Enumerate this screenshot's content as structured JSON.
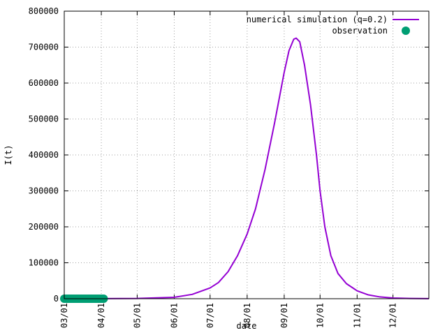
{
  "chart_data": {
    "type": "line",
    "xlabel": "date",
    "ylabel": "I(t)",
    "xlim": [
      "2020-03-01",
      "2020-12-31"
    ],
    "ylim": [
      0,
      800000
    ],
    "xticks": [
      {
        "date": "2020-03-01",
        "label": "03/01"
      },
      {
        "date": "2020-04-01",
        "label": "04/01"
      },
      {
        "date": "2020-05-01",
        "label": "05/01"
      },
      {
        "date": "2020-06-01",
        "label": "06/01"
      },
      {
        "date": "2020-07-01",
        "label": "07/01"
      },
      {
        "date": "2020-08-01",
        "label": "08/01"
      },
      {
        "date": "2020-09-01",
        "label": "09/01"
      },
      {
        "date": "2020-10-01",
        "label": "10/01"
      },
      {
        "date": "2020-11-01",
        "label": "11/01"
      },
      {
        "date": "2020-12-01",
        "label": "12/01"
      }
    ],
    "yticks": [
      0,
      100000,
      200000,
      300000,
      400000,
      500000,
      600000,
      700000,
      800000
    ],
    "grid": true,
    "legend_position": "top-right",
    "series": [
      {
        "name": "numerical simulation (q=0.2)",
        "type": "line",
        "color": "#9400d3",
        "points": [
          {
            "x": "2020-03-01",
            "y": 0
          },
          {
            "x": "2020-04-01",
            "y": 200
          },
          {
            "x": "2020-05-01",
            "y": 800
          },
          {
            "x": "2020-06-01",
            "y": 4000
          },
          {
            "x": "2020-06-16",
            "y": 12000
          },
          {
            "x": "2020-07-01",
            "y": 30000
          },
          {
            "x": "2020-07-08",
            "y": 45000
          },
          {
            "x": "2020-07-16",
            "y": 75000
          },
          {
            "x": "2020-07-24",
            "y": 120000
          },
          {
            "x": "2020-08-01",
            "y": 180000
          },
          {
            "x": "2020-08-08",
            "y": 250000
          },
          {
            "x": "2020-08-16",
            "y": 360000
          },
          {
            "x": "2020-08-24",
            "y": 490000
          },
          {
            "x": "2020-09-01",
            "y": 630000
          },
          {
            "x": "2020-09-05",
            "y": 690000
          },
          {
            "x": "2020-09-09",
            "y": 722000
          },
          {
            "x": "2020-09-11",
            "y": 725000
          },
          {
            "x": "2020-09-14",
            "y": 715000
          },
          {
            "x": "2020-09-18",
            "y": 650000
          },
          {
            "x": "2020-09-23",
            "y": 540000
          },
          {
            "x": "2020-09-28",
            "y": 400000
          },
          {
            "x": "2020-10-01",
            "y": 300000
          },
          {
            "x": "2020-10-05",
            "y": 200000
          },
          {
            "x": "2020-10-10",
            "y": 120000
          },
          {
            "x": "2020-10-16",
            "y": 70000
          },
          {
            "x": "2020-10-23",
            "y": 42000
          },
          {
            "x": "2020-11-01",
            "y": 22000
          },
          {
            "x": "2020-11-10",
            "y": 11000
          },
          {
            "x": "2020-11-20",
            "y": 5000
          },
          {
            "x": "2020-12-01",
            "y": 2000
          },
          {
            "x": "2020-12-15",
            "y": 800
          },
          {
            "x": "2020-12-31",
            "y": 200
          }
        ]
      },
      {
        "name": "observation",
        "type": "scatter",
        "color": "#009e73",
        "points": [
          {
            "x": "2020-03-01",
            "y": 0
          },
          {
            "x": "2020-03-02",
            "y": 0
          },
          {
            "x": "2020-03-03",
            "y": 0
          },
          {
            "x": "2020-03-04",
            "y": 0
          },
          {
            "x": "2020-03-05",
            "y": 0
          },
          {
            "x": "2020-03-06",
            "y": 0
          },
          {
            "x": "2020-03-07",
            "y": 0
          },
          {
            "x": "2020-03-08",
            "y": 0
          },
          {
            "x": "2020-03-09",
            "y": 0
          },
          {
            "x": "2020-03-10",
            "y": 0
          },
          {
            "x": "2020-03-11",
            "y": 0
          },
          {
            "x": "2020-03-12",
            "y": 0
          },
          {
            "x": "2020-03-13",
            "y": 0
          },
          {
            "x": "2020-03-14",
            "y": 0
          },
          {
            "x": "2020-03-15",
            "y": 0
          },
          {
            "x": "2020-03-16",
            "y": 0
          },
          {
            "x": "2020-03-17",
            "y": 0
          },
          {
            "x": "2020-03-18",
            "y": 0
          },
          {
            "x": "2020-03-19",
            "y": 0
          },
          {
            "x": "2020-03-20",
            "y": 0
          },
          {
            "x": "2020-03-21",
            "y": 0
          },
          {
            "x": "2020-03-22",
            "y": 0
          },
          {
            "x": "2020-03-23",
            "y": 0
          },
          {
            "x": "2020-03-24",
            "y": 0
          },
          {
            "x": "2020-03-25",
            "y": 0
          },
          {
            "x": "2020-03-26",
            "y": 0
          },
          {
            "x": "2020-03-27",
            "y": 0
          },
          {
            "x": "2020-03-28",
            "y": 0
          },
          {
            "x": "2020-03-29",
            "y": 0
          },
          {
            "x": "2020-03-30",
            "y": 0
          },
          {
            "x": "2020-03-31",
            "y": 0
          },
          {
            "x": "2020-04-01",
            "y": 0
          },
          {
            "x": "2020-04-02",
            "y": 0
          },
          {
            "x": "2020-04-03",
            "y": 0
          }
        ]
      }
    ]
  }
}
